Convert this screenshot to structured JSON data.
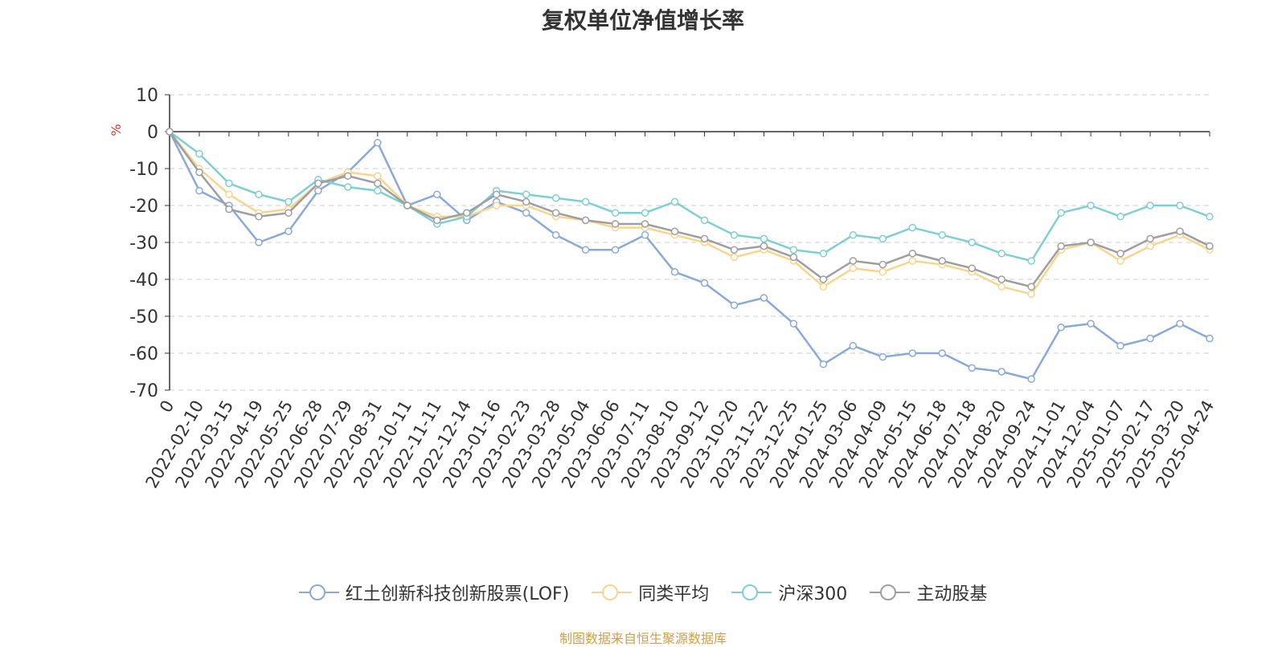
{
  "chart_data": {
    "type": "line",
    "title": "复权单位净值增长率",
    "ylabel": "%",
    "ylim": [
      -70,
      10
    ],
    "yticks": [
      10,
      0,
      -10,
      -20,
      -30,
      -40,
      -50,
      -60,
      -70
    ],
    "grid": true,
    "legend_position": "bottom",
    "categories": [
      "0",
      "2022-02-10",
      "2022-03-15",
      "2022-04-19",
      "2022-05-25",
      "2022-06-28",
      "2022-07-29",
      "2022-08-31",
      "2022-10-11",
      "2022-11-11",
      "2022-12-14",
      "2023-01-16",
      "2023-02-23",
      "2023-03-28",
      "2023-05-04",
      "2023-06-06",
      "2023-07-11",
      "2023-08-10",
      "2023-09-12",
      "2023-10-20",
      "2023-11-22",
      "2023-12-25",
      "2024-01-25",
      "2024-03-06",
      "2024-04-09",
      "2024-05-15",
      "2024-06-18",
      "2024-07-18",
      "2024-08-20",
      "2024-09-24",
      "2024-11-01",
      "2024-12-04",
      "2025-01-07",
      "2025-02-17",
      "2025-03-20",
      "2025-04-24"
    ],
    "series": [
      {
        "name": "红土创新科技创新股票(LOF)",
        "color": "#8aa9d9",
        "values": [
          0,
          -16,
          -20,
          -30,
          -27,
          -16,
          -11,
          -3,
          -20,
          -17,
          -24,
          -19,
          -22,
          -28,
          -32,
          -32,
          -28,
          -38,
          -41,
          -47,
          -45,
          -52,
          -63,
          -58,
          -61,
          -60,
          -60,
          -64,
          -65,
          -67,
          -53,
          -52,
          -58,
          -56,
          -52,
          -56
        ]
      },
      {
        "name": "同类平均",
        "color": "#f7d58f",
        "values": [
          0,
          -10,
          -17,
          -22,
          -21,
          -14,
          -11,
          -12,
          -20,
          -23,
          -23,
          -20,
          -20,
          -23,
          -24,
          -26,
          -26,
          -28,
          -30,
          -34,
          -32,
          -35,
          -42,
          -37,
          -38,
          -35,
          -36,
          -38,
          -42,
          -44,
          -32,
          -30,
          -35,
          -31,
          -28,
          -32
        ]
      },
      {
        "name": "沪深300",
        "color": "#7fcfd1",
        "values": [
          0,
          -6,
          -14,
          -17,
          -19,
          -13,
          -15,
          -16,
          -20,
          -25,
          -23,
          -16,
          -17,
          -18,
          -19,
          -22,
          -22,
          -19,
          -24,
          -28,
          -29,
          -32,
          -33,
          -28,
          -29,
          -26,
          -28,
          -30,
          -33,
          -35,
          -22,
          -20,
          -23,
          -20,
          -20,
          -23
        ]
      },
      {
        "name": "主动股基",
        "color": "#9e9e9e",
        "values": [
          0,
          -11,
          -21,
          -23,
          -22,
          -14,
          -12,
          -14,
          -20,
          -24,
          -22,
          -17,
          -19,
          -22,
          -24,
          -25,
          -25,
          -27,
          -29,
          -32,
          -31,
          -34,
          -40,
          -35,
          -36,
          -33,
          -35,
          -37,
          -40,
          -42,
          -31,
          -30,
          -33,
          -29,
          -27,
          -31
        ]
      }
    ],
    "source": "制图数据来自恒生聚源数据库"
  }
}
